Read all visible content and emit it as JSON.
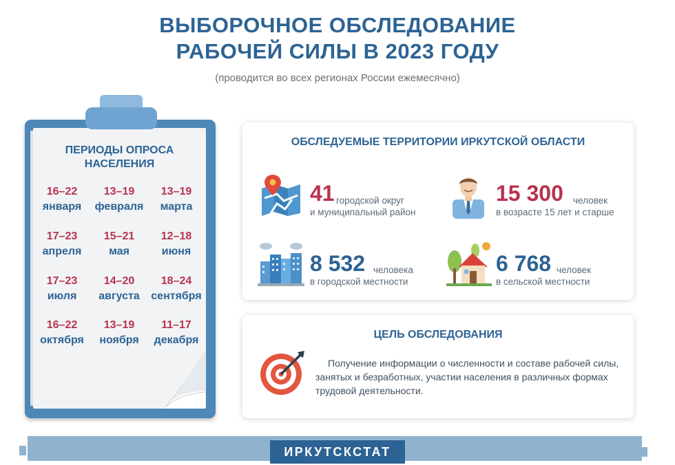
{
  "header": {
    "title_line1": "ВЫБОРОЧНОЕ ОБСЛЕДОВАНИЕ",
    "title_line2": "РАБОЧЕЙ СИЛЫ В 2023 ГОДУ",
    "subtitle": "(проводится во всех регионах России ежемесячно)"
  },
  "periods": {
    "title_line1": "ПЕРИОДЫ ОПРОСА",
    "title_line2": "НАСЕЛЕНИЯ",
    "items": [
      {
        "dates": "16–22",
        "month": "января"
      },
      {
        "dates": "13–19",
        "month": "февраля"
      },
      {
        "dates": "13–19",
        "month": "марта"
      },
      {
        "dates": "17–23",
        "month": "апреля"
      },
      {
        "dates": "15–21",
        "month": "мая"
      },
      {
        "dates": "12–18",
        "month": "июня"
      },
      {
        "dates": "17–23",
        "month": "июля"
      },
      {
        "dates": "14–20",
        "month": "августа"
      },
      {
        "dates": "18–24",
        "month": "сентября"
      },
      {
        "dates": "16–22",
        "month": "октября"
      },
      {
        "dates": "13–19",
        "month": "ноября"
      },
      {
        "dates": "11–17",
        "month": "декабря"
      }
    ]
  },
  "territories": {
    "title": "ОБСЛЕДУЕМЫЕ ТЕРРИТОРИИ ИРКУТСКОЙ ОБЛАСТИ",
    "districts": {
      "value": "41",
      "line1": "городской округ",
      "line2": "и муниципальный район"
    },
    "persons": {
      "value": "15 300",
      "line1": "человек",
      "line2": "в возрасте 15 лет и старше"
    },
    "urban": {
      "value": "8 532",
      "line1": "человека",
      "line2": "в городской местности"
    },
    "rural": {
      "value": "6 768",
      "line1": "человек",
      "line2": "в сельской местности"
    }
  },
  "goal": {
    "title": "ЦЕЛЬ ОБСЛЕДОВАНИЯ",
    "text": "Получение информации о численности и составе рабочей силы, занятых и безработных, участии населения в различных формах трудовой деятельности."
  },
  "footer": {
    "label": "ИРКУТСКСТАТ"
  },
  "icons": {
    "map": "map-pin-icon",
    "person": "person-icon",
    "city": "city-buildings-icon",
    "village": "village-house-icon",
    "target": "target-icon"
  },
  "colors": {
    "primary": "#2d6394",
    "accent_red": "#b8324e",
    "clipboard": "#4d88b8",
    "footer": "#8fb3cf"
  }
}
